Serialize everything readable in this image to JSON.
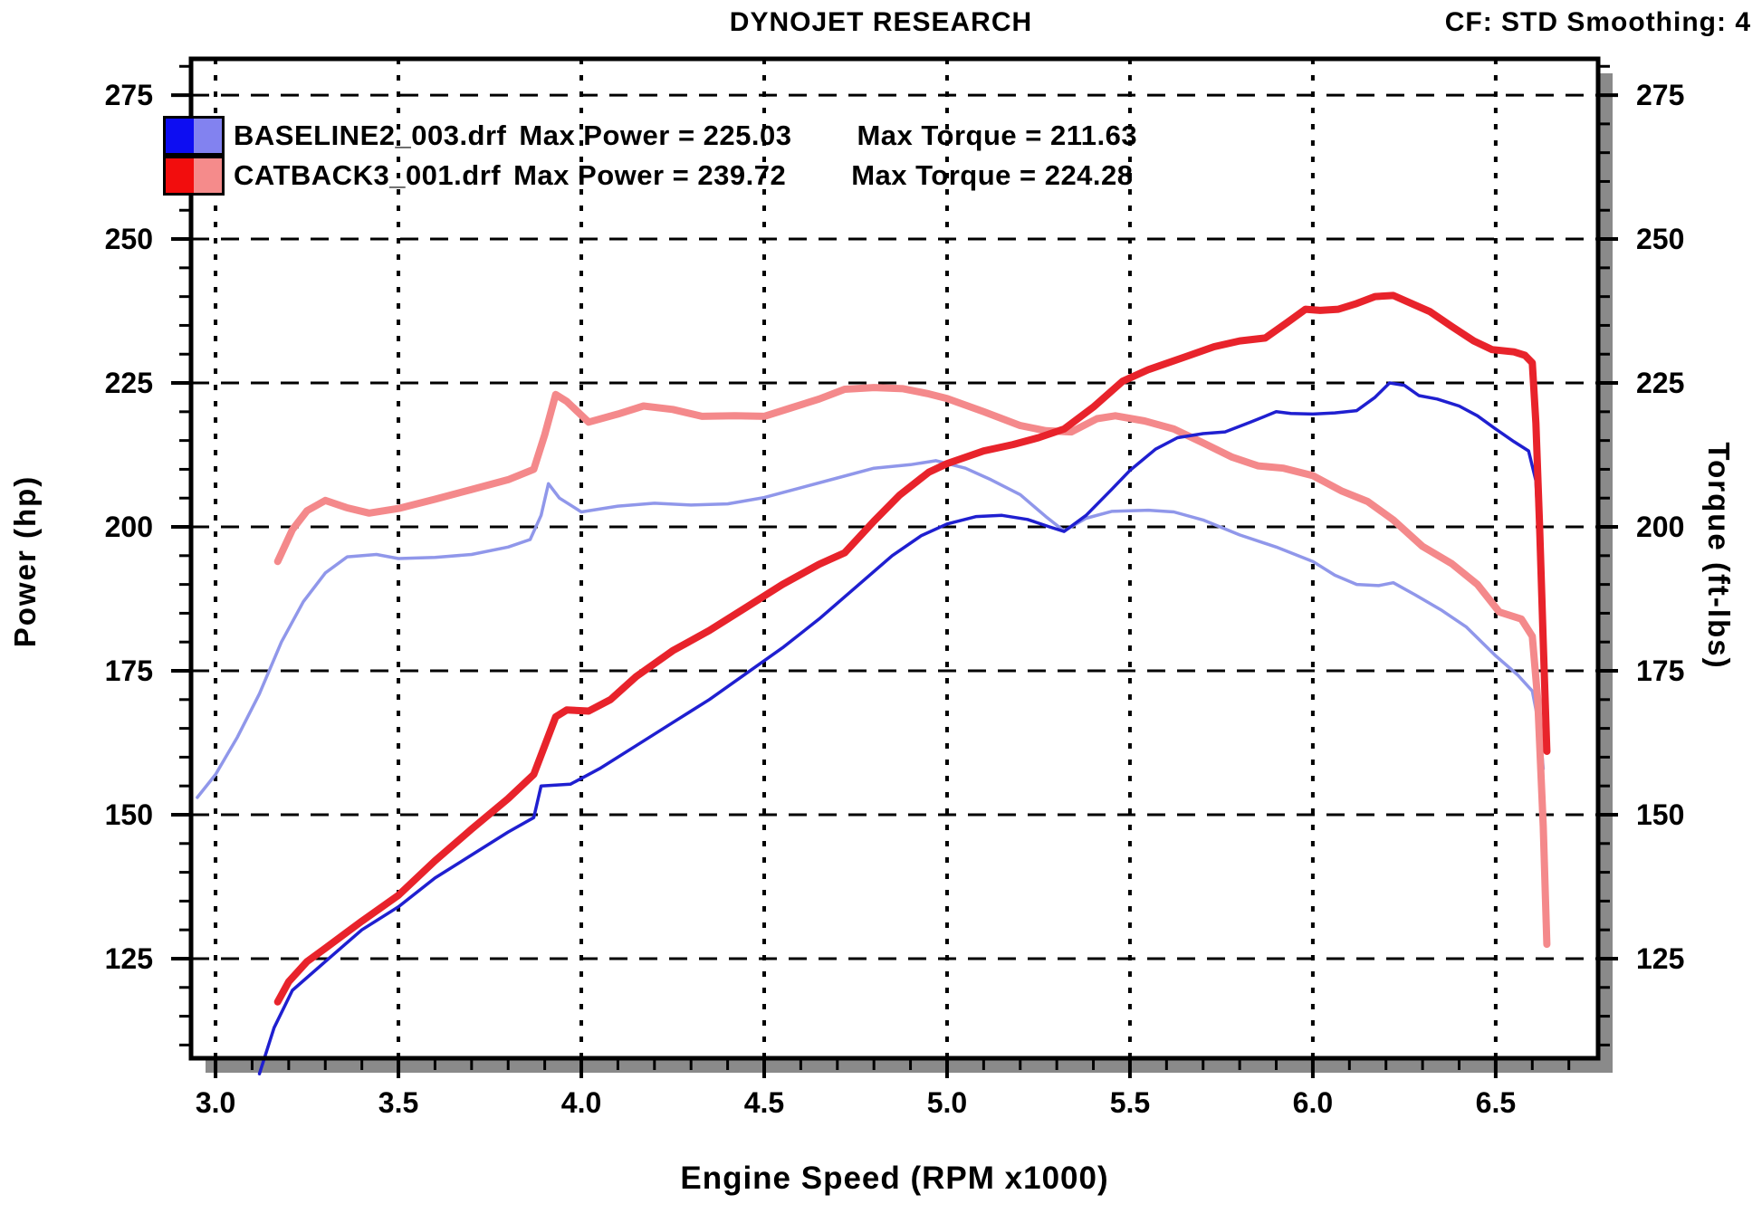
{
  "header": {
    "title": "DYNOJET RESEARCH",
    "settings": "CF: STD  Smoothing: 4"
  },
  "legend": {
    "rows": [
      {
        "file": "BASELINE2_003.drf",
        "power": "Max Power = 225.03",
        "torque": "Max Torque = 211.63",
        "swatch": {
          "left": "#0d0df2",
          "right": "#8282f0"
        }
      },
      {
        "file": "CATBACK3_001.drf",
        "power": "Max Power = 239.72",
        "torque": "Max Torque = 224.28",
        "swatch": {
          "left": "#f20d0d",
          "right": "#f58b8b"
        }
      }
    ]
  },
  "axes": {
    "x": {
      "label": "Engine Speed (RPM x1000)"
    },
    "y_left": {
      "label": "Power (hp)"
    },
    "y_right": {
      "label": "Torque (ft-lbs)"
    }
  },
  "colors": {
    "shadow": "#8a8a8a",
    "grid": "#000000",
    "border": "#000000",
    "background": "#ffffff",
    "power_baseline": "#1f1fd0",
    "torque_baseline": "#9097ea",
    "power_catback": "#e8232b",
    "torque_catback": "#f4898b"
  },
  "chart_data": {
    "type": "line",
    "title": "DYNOJET RESEARCH",
    "xlabel": "Engine Speed (RPM x1000)",
    "ylabel_left": "Power (hp)",
    "ylabel_right": "Torque (ft-lbs)",
    "x_range": [
      2.933,
      6.78
    ],
    "y_range": [
      107.7,
      281.3
    ],
    "x_ticks_major": [
      3.0,
      3.5,
      4.0,
      4.5,
      5.0,
      5.5,
      6.0,
      6.5
    ],
    "x_minor_step": 0.1,
    "y_ticks_major": [
      125,
      150,
      175,
      200,
      225,
      250,
      275
    ],
    "y_minor_step": 5,
    "grid": "both-dashed",
    "legend_position": "top-left",
    "series": [
      {
        "name": "BASELINE2_003.drf Torque",
        "axis": "right",
        "color": "#9097ea",
        "width": 3.5,
        "max": 211.63,
        "points": [
          [
            2.95,
            153
          ],
          [
            3.0,
            157
          ],
          [
            3.06,
            163.5
          ],
          [
            3.12,
            171
          ],
          [
            3.18,
            180
          ],
          [
            3.24,
            187
          ],
          [
            3.3,
            192
          ],
          [
            3.36,
            194.8
          ],
          [
            3.44,
            195.2
          ],
          [
            3.5,
            194.5
          ],
          [
            3.6,
            194.7
          ],
          [
            3.7,
            195.2
          ],
          [
            3.8,
            196.5
          ],
          [
            3.86,
            197.8
          ],
          [
            3.89,
            202
          ],
          [
            3.91,
            207.5
          ],
          [
            3.94,
            205
          ],
          [
            4.0,
            202.6
          ],
          [
            4.1,
            203.6
          ],
          [
            4.2,
            204.1
          ],
          [
            4.3,
            203.8
          ],
          [
            4.4,
            204
          ],
          [
            4.5,
            205.1
          ],
          [
            4.6,
            206.8
          ],
          [
            4.7,
            208.5
          ],
          [
            4.8,
            210.2
          ],
          [
            4.9,
            210.8
          ],
          [
            4.97,
            211.5
          ],
          [
            5.05,
            210.2
          ],
          [
            5.12,
            208.2
          ],
          [
            5.2,
            205.6
          ],
          [
            5.27,
            201.8
          ],
          [
            5.32,
            199.3
          ],
          [
            5.38,
            201.5
          ],
          [
            5.45,
            202.7
          ],
          [
            5.55,
            202.9
          ],
          [
            5.62,
            202.6
          ],
          [
            5.7,
            201.2
          ],
          [
            5.8,
            198.6
          ],
          [
            5.9,
            196.5
          ],
          [
            6.0,
            194
          ],
          [
            6.06,
            191.6
          ],
          [
            6.12,
            190
          ],
          [
            6.18,
            189.8
          ],
          [
            6.22,
            190.3
          ],
          [
            6.28,
            188.2
          ],
          [
            6.35,
            185.6
          ],
          [
            6.42,
            182.6
          ],
          [
            6.5,
            177.6
          ],
          [
            6.56,
            174.3
          ],
          [
            6.6,
            171.5
          ],
          [
            6.62,
            165
          ],
          [
            6.63,
            158
          ]
        ]
      },
      {
        "name": "CATBACK3_001.drf Torque",
        "axis": "right",
        "color": "#f4898b",
        "width": 8,
        "max": 224.28,
        "points": [
          [
            3.17,
            194
          ],
          [
            3.21,
            199.5
          ],
          [
            3.25,
            202.8
          ],
          [
            3.3,
            204.6
          ],
          [
            3.36,
            203.3
          ],
          [
            3.42,
            202.4
          ],
          [
            3.5,
            203.2
          ],
          [
            3.6,
            204.8
          ],
          [
            3.7,
            206.5
          ],
          [
            3.8,
            208.2
          ],
          [
            3.87,
            210
          ],
          [
            3.9,
            216
          ],
          [
            3.93,
            223
          ],
          [
            3.96,
            221.8
          ],
          [
            4.02,
            218.2
          ],
          [
            4.1,
            219.6
          ],
          [
            4.17,
            221
          ],
          [
            4.25,
            220.4
          ],
          [
            4.33,
            219.2
          ],
          [
            4.42,
            219.3
          ],
          [
            4.5,
            219.2
          ],
          [
            4.57,
            220.6
          ],
          [
            4.65,
            222.2
          ],
          [
            4.72,
            223.9
          ],
          [
            4.8,
            224.2
          ],
          [
            4.88,
            224
          ],
          [
            4.95,
            223.1
          ],
          [
            5.0,
            222.3
          ],
          [
            5.1,
            220
          ],
          [
            5.2,
            217.6
          ],
          [
            5.27,
            216.7
          ],
          [
            5.34,
            216.5
          ],
          [
            5.41,
            218.8
          ],
          [
            5.46,
            219.3
          ],
          [
            5.54,
            218.4
          ],
          [
            5.62,
            217
          ],
          [
            5.7,
            214.6
          ],
          [
            5.78,
            212.1
          ],
          [
            5.85,
            210.6
          ],
          [
            5.92,
            210.2
          ],
          [
            6.0,
            208.9
          ],
          [
            6.08,
            206.2
          ],
          [
            6.15,
            204.4
          ],
          [
            6.22,
            201.2
          ],
          [
            6.3,
            196.6
          ],
          [
            6.38,
            193.6
          ],
          [
            6.45,
            190
          ],
          [
            6.51,
            185.2
          ],
          [
            6.57,
            184
          ],
          [
            6.6,
            181
          ],
          [
            6.615,
            170
          ],
          [
            6.63,
            148
          ],
          [
            6.64,
            127.5
          ]
        ]
      },
      {
        "name": "BASELINE2_003.drf Power",
        "axis": "left",
        "color": "#1f1fd0",
        "width": 3.5,
        "max": 225.03,
        "points": [
          [
            3.12,
            105
          ],
          [
            3.16,
            113
          ],
          [
            3.21,
            119.5
          ],
          [
            3.3,
            124.5
          ],
          [
            3.4,
            130
          ],
          [
            3.5,
            134
          ],
          [
            3.6,
            139
          ],
          [
            3.7,
            143
          ],
          [
            3.8,
            147
          ],
          [
            3.87,
            149.5
          ],
          [
            3.89,
            155
          ],
          [
            3.97,
            155.3
          ],
          [
            4.05,
            158
          ],
          [
            4.15,
            162
          ],
          [
            4.25,
            166
          ],
          [
            4.35,
            170
          ],
          [
            4.45,
            174.5
          ],
          [
            4.55,
            179
          ],
          [
            4.65,
            184
          ],
          [
            4.75,
            189.5
          ],
          [
            4.85,
            195
          ],
          [
            4.93,
            198.5
          ],
          [
            5.0,
            200.5
          ],
          [
            5.08,
            201.8
          ],
          [
            5.15,
            202
          ],
          [
            5.22,
            201.3
          ],
          [
            5.28,
            200
          ],
          [
            5.32,
            199.2
          ],
          [
            5.38,
            202
          ],
          [
            5.45,
            206.5
          ],
          [
            5.5,
            209.8
          ],
          [
            5.57,
            213.5
          ],
          [
            5.63,
            215.5
          ],
          [
            5.7,
            216.2
          ],
          [
            5.76,
            216.5
          ],
          [
            5.83,
            218.2
          ],
          [
            5.9,
            220
          ],
          [
            5.94,
            219.7
          ],
          [
            6.0,
            219.6
          ],
          [
            6.06,
            219.8
          ],
          [
            6.12,
            220.2
          ],
          [
            6.17,
            222.5
          ],
          [
            6.21,
            225
          ],
          [
            6.25,
            224.6
          ],
          [
            6.29,
            222.8
          ],
          [
            6.34,
            222.2
          ],
          [
            6.4,
            221
          ],
          [
            6.45,
            219.3
          ],
          [
            6.5,
            217
          ],
          [
            6.55,
            214.8
          ],
          [
            6.59,
            213.2
          ],
          [
            6.61,
            208
          ],
          [
            6.62,
            195
          ],
          [
            6.63,
            178
          ],
          [
            6.635,
            165
          ]
        ]
      },
      {
        "name": "CATBACK3_001.drf Power",
        "axis": "left",
        "color": "#e8232b",
        "width": 8,
        "max": 239.72,
        "points": [
          [
            3.17,
            117.5
          ],
          [
            3.2,
            121
          ],
          [
            3.25,
            124.5
          ],
          [
            3.3,
            126.8
          ],
          [
            3.4,
            131.5
          ],
          [
            3.5,
            136
          ],
          [
            3.6,
            142
          ],
          [
            3.7,
            147.5
          ],
          [
            3.8,
            152.8
          ],
          [
            3.87,
            157
          ],
          [
            3.9,
            162
          ],
          [
            3.93,
            167
          ],
          [
            3.96,
            168.2
          ],
          [
            4.02,
            168
          ],
          [
            4.08,
            170
          ],
          [
            4.15,
            174
          ],
          [
            4.25,
            178.5
          ],
          [
            4.35,
            182
          ],
          [
            4.45,
            186
          ],
          [
            4.55,
            190
          ],
          [
            4.65,
            193.5
          ],
          [
            4.72,
            195.5
          ],
          [
            4.8,
            201
          ],
          [
            4.87,
            205.5
          ],
          [
            4.95,
            209.5
          ],
          [
            5.0,
            211
          ],
          [
            5.1,
            213.2
          ],
          [
            5.18,
            214.3
          ],
          [
            5.25,
            215.5
          ],
          [
            5.32,
            217
          ],
          [
            5.4,
            220.8
          ],
          [
            5.48,
            225.3
          ],
          [
            5.55,
            227.3
          ],
          [
            5.65,
            229.5
          ],
          [
            5.73,
            231.3
          ],
          [
            5.8,
            232.3
          ],
          [
            5.87,
            232.8
          ],
          [
            5.93,
            235.5
          ],
          [
            5.98,
            237.8
          ],
          [
            6.02,
            237.6
          ],
          [
            6.07,
            237.8
          ],
          [
            6.12,
            238.8
          ],
          [
            6.17,
            240
          ],
          [
            6.22,
            240.2
          ],
          [
            6.27,
            238.8
          ],
          [
            6.32,
            237.4
          ],
          [
            6.38,
            234.8
          ],
          [
            6.44,
            232.3
          ],
          [
            6.49,
            230.8
          ],
          [
            6.55,
            230.4
          ],
          [
            6.58,
            229.8
          ],
          [
            6.6,
            228.5
          ],
          [
            6.61,
            218
          ],
          [
            6.62,
            200
          ],
          [
            6.63,
            180
          ],
          [
            6.64,
            161
          ]
        ]
      }
    ]
  }
}
